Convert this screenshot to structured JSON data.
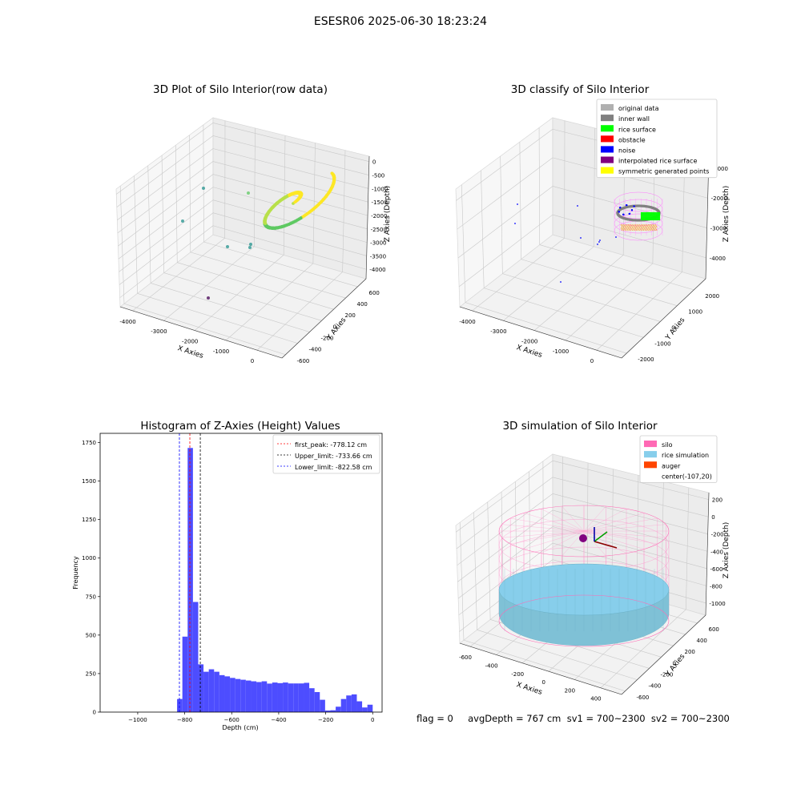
{
  "suptitle": "ESESR06 2025-06-30 18:23:24",
  "footer": "flag = 0     avgDepth = 767 cm  sv1 = 700~2300  sv2 = 700~2300",
  "chart_data": [
    {
      "type": "scatter",
      "title": "3D Plot of Silo Interior(row data)",
      "xlabel": "X Axies",
      "ylabel": "Y Axies",
      "zlabel": "Z Axies (Depth)",
      "x_ticks": [
        "-4000",
        "-3000",
        "-2000",
        "-1000",
        "0"
      ],
      "y_ticks": [
        "-600",
        "-400",
        "-200",
        "0",
        "200",
        "400",
        "600"
      ],
      "z_ticks": [
        "0",
        "-500",
        "-1000",
        "-1500",
        "-2000",
        "-2500",
        "-3000",
        "-3500",
        "-4000"
      ],
      "colormap": [
        "#440154",
        "#21918c",
        "#5ec962",
        "#fde725"
      ]
    },
    {
      "type": "scatter",
      "title": "3D classify of Silo Interior",
      "xlabel": "X Axies",
      "ylabel": "Y Axies",
      "zlabel": "Z Axies (Depth)",
      "x_ticks": [
        "-4000",
        "-3000",
        "-2000",
        "-1000",
        "0"
      ],
      "y_ticks": [
        "-2000",
        "-1000",
        "0",
        "1000",
        "2000"
      ],
      "z_ticks": [
        "-1000",
        "-2000",
        "-3000",
        "-4000"
      ],
      "legend": [
        {
          "name": "original data",
          "color": "#b0b0b0"
        },
        {
          "name": "inner wall",
          "color": "#808080"
        },
        {
          "name": "rice surface",
          "color": "#00ff00"
        },
        {
          "name": "obstacle",
          "color": "#ff0000"
        },
        {
          "name": "noise",
          "color": "#0000ff"
        },
        {
          "name": "interpolated rice surface",
          "color": "#800080"
        },
        {
          "name": "symmetric generated points",
          "color": "#ffff00"
        }
      ],
      "legend_position": "top-right"
    },
    {
      "type": "bar",
      "title": "Histogram of Z-Axies (Height) Values",
      "xlabel": "Depth (cm)",
      "ylabel": "Frequency",
      "xlim": [
        -1160,
        40
      ],
      "ylim": [
        0,
        1810
      ],
      "x_ticks": [
        -1000,
        -800,
        -600,
        -400,
        -200,
        0
      ],
      "y_ticks": [
        0,
        250,
        500,
        750,
        1000,
        1250,
        1500,
        1750
      ],
      "bin_width": 22.5,
      "bins": [
        {
          "x0": -832.5,
          "value": 85
        },
        {
          "x0": -810,
          "value": 490
        },
        {
          "x0": -787.5,
          "value": 1715
        },
        {
          "x0": -765,
          "value": 715
        },
        {
          "x0": -742.5,
          "value": 310
        },
        {
          "x0": -720,
          "value": 262
        },
        {
          "x0": -697.5,
          "value": 278
        },
        {
          "x0": -675,
          "value": 262
        },
        {
          "x0": -652.5,
          "value": 240
        },
        {
          "x0": -630,
          "value": 232
        },
        {
          "x0": -607.5,
          "value": 222
        },
        {
          "x0": -585,
          "value": 215
        },
        {
          "x0": -562.5,
          "value": 210
        },
        {
          "x0": -540,
          "value": 205
        },
        {
          "x0": -517.5,
          "value": 200
        },
        {
          "x0": -495,
          "value": 195
        },
        {
          "x0": -472.5,
          "value": 200
        },
        {
          "x0": -450,
          "value": 185
        },
        {
          "x0": -427.5,
          "value": 192
        },
        {
          "x0": -405,
          "value": 188
        },
        {
          "x0": -382.5,
          "value": 192
        },
        {
          "x0": -360,
          "value": 186
        },
        {
          "x0": -337.5,
          "value": 186
        },
        {
          "x0": -315,
          "value": 186
        },
        {
          "x0": -292.5,
          "value": 190
        },
        {
          "x0": -270,
          "value": 155
        },
        {
          "x0": -247.5,
          "value": 130
        },
        {
          "x0": -225,
          "value": 80
        },
        {
          "x0": -202.5,
          "value": 10
        },
        {
          "x0": -180,
          "value": 12
        },
        {
          "x0": -157.5,
          "value": 35
        },
        {
          "x0": -135,
          "value": 85
        },
        {
          "x0": -112.5,
          "value": 108
        },
        {
          "x0": -90,
          "value": 115
        },
        {
          "x0": -67.5,
          "value": 70
        },
        {
          "x0": -45,
          "value": 30
        },
        {
          "x0": -22.5,
          "value": 48
        }
      ],
      "bar_color": "#4d4dff",
      "vlines": [
        {
          "label": "first_peak: -778.12 cm",
          "x": -778.12,
          "color": "#ff0000"
        },
        {
          "label": "Upper_limit: -733.66 cm",
          "x": -733.66,
          "color": "#000000"
        },
        {
          "label": "Lower_limit: -822.58 cm",
          "x": -822.58,
          "color": "#0000ff"
        }
      ],
      "legend_position": "top-right"
    },
    {
      "type": "scatter",
      "title": "3D simulation of Silo Interior",
      "xlabel": "X Axies",
      "ylabel": "Y Axies",
      "zlabel": "Z Axies (Depth)",
      "x_ticks": [
        "-600",
        "-400",
        "-200",
        "0",
        "200",
        "400"
      ],
      "y_ticks": [
        "-600",
        "-400",
        "-200",
        "0",
        "200",
        "400",
        "600"
      ],
      "z_ticks": [
        "200",
        "0",
        "-200",
        "-400",
        "-600",
        "-800",
        "-1000"
      ],
      "legend": [
        {
          "name": "silo",
          "color": "#ff69b4"
        },
        {
          "name": "rice simulation",
          "color": "#87ceeb"
        },
        {
          "name": "auger",
          "color": "#ff4500"
        },
        {
          "name": "center(-107,20)",
          "color": ""
        }
      ],
      "legend_position": "top-right"
    }
  ]
}
